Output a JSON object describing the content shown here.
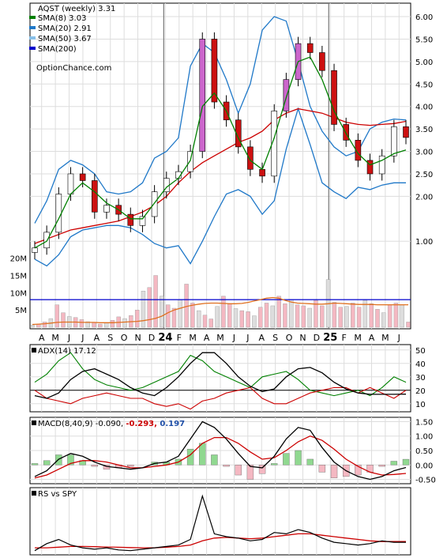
{
  "chart_data": [
    {
      "type": "line",
      "panel": "price",
      "title": "AQST (weekly) 3.31",
      "watermark": "OptionChance.com",
      "legend": [
        {
          "label": "SMA(8) 3.03",
          "color": "#008000"
        },
        {
          "label": "SMA(20) 2.91",
          "color": "#1f78c8"
        },
        {
          "label": "SMA(50) 3.67",
          "color": "#87bfe8"
        },
        {
          "label": "SMA(200)",
          "color": "#0000cc"
        }
      ],
      "y_ticks": [
        "6.00",
        "5.50",
        "5.00",
        "4.50",
        "4.00",
        "3.50",
        "3.00",
        "2.50",
        "2.00",
        "1.00"
      ],
      "ylim": [
        0.3,
        6.3
      ],
      "x_labels": [
        "A",
        "M",
        "J",
        "J",
        "A",
        "S",
        "O",
        "N",
        "D",
        "24",
        "F",
        "M",
        "A",
        "M",
        "J",
        "J",
        "A",
        "S",
        "O",
        "N",
        "D",
        "25",
        "F",
        "M",
        "A",
        "M",
        "J"
      ],
      "close": [
        0.85,
        1.2,
        2.05,
        2.5,
        2.35,
        1.65,
        1.8,
        1.6,
        1.35,
        1.55,
        2.1,
        2.4,
        2.55,
        3.0,
        5.5,
        4.1,
        3.7,
        3.1,
        2.6,
        2.45,
        3.9,
        4.6,
        5.4,
        5.2,
        4.8,
        3.6,
        3.25,
        2.8,
        2.5,
        2.9,
        3.55,
        3.31
      ],
      "sma8": [
        0.85,
        1.0,
        1.5,
        2.05,
        2.3,
        2.1,
        1.85,
        1.7,
        1.5,
        1.5,
        1.85,
        2.2,
        2.4,
        2.8,
        4.0,
        4.3,
        3.9,
        3.3,
        2.8,
        2.6,
        3.3,
        4.2,
        5.0,
        5.1,
        4.6,
        3.9,
        3.4,
        2.95,
        2.7,
        2.8,
        2.95,
        3.03
      ],
      "upper_band": [
        1.4,
        1.9,
        2.6,
        2.8,
        2.7,
        2.5,
        2.1,
        2.05,
        2.1,
        2.3,
        2.85,
        3.0,
        3.3,
        4.9,
        5.4,
        5.2,
        4.6,
        3.85,
        4.5,
        5.7,
        6.0,
        5.9,
        5.0,
        4.0,
        3.45,
        3.1,
        2.9,
        3.0,
        3.5,
        3.65,
        3.72,
        3.7
      ],
      "lower_band": [
        0.6,
        0.45,
        0.7,
        1.1,
        1.25,
        1.3,
        1.35,
        1.35,
        1.3,
        1.15,
        0.95,
        0.85,
        0.9,
        0.5,
        1.0,
        1.55,
        2.05,
        2.15,
        2.0,
        1.6,
        1.9,
        3.05,
        3.95,
        3.15,
        2.3,
        2.1,
        1.95,
        2.2,
        2.15,
        2.25,
        2.3,
        2.3
      ],
      "sma50": [
        0.95,
        1.05,
        1.15,
        1.25,
        1.3,
        1.35,
        1.4,
        1.45,
        1.55,
        1.65,
        1.8,
        2.0,
        2.3,
        2.55,
        2.75,
        2.9,
        3.05,
        3.2,
        3.3,
        3.45,
        3.7,
        3.85,
        3.95,
        3.9,
        3.85,
        3.75,
        3.65,
        3.6,
        3.58,
        3.6,
        3.62,
        3.67
      ]
    },
    {
      "type": "bar",
      "panel": "volume",
      "y_ticks": [
        "20M",
        "15M",
        "10M",
        "5M"
      ],
      "ylim": [
        0,
        22
      ],
      "values": [
        0.6,
        0.9,
        1.5,
        2.5,
        6.5,
        4.2,
        3.1,
        2.8,
        2.2,
        1.6,
        1.3,
        0.9,
        1.2,
        2.0,
        3.0,
        2.5,
        3.4,
        5.0,
        10.5,
        11.5,
        15.0,
        9.0,
        6.5,
        5.5,
        8.0,
        12.5,
        7.0,
        4.8,
        3.5,
        2.4,
        6.0,
        9.0,
        6.8,
        5.4,
        4.8,
        4.5,
        3.3,
        5.8,
        7.0,
        6.2,
        9.0,
        6.8,
        8.0,
        6.5,
        6.2,
        5.5,
        7.8,
        6.2,
        13.8,
        7.2,
        5.8,
        6.0,
        7.0,
        5.8,
        7.8,
        6.8,
        5.2,
        4.2,
        6.5,
        7.0,
        6.5,
        1.5
      ],
      "avg_volume": [
        0.8,
        0.9,
        1.0,
        1.2,
        1.4,
        1.5,
        1.5,
        1.5,
        1.4,
        1.4,
        1.4,
        1.3,
        1.3,
        1.3,
        1.4,
        1.5,
        1.6,
        1.7,
        1.9,
        2.2,
        2.6,
        3.2,
        4.2,
        5.0,
        5.5,
        6.0,
        6.4,
        6.7,
        6.9,
        7.0,
        7.0,
        6.9,
        6.8,
        6.8,
        6.9,
        7.2,
        7.6,
        8.0,
        8.4,
        8.6,
        8.4,
        7.8,
        7.3,
        7.0,
        6.9,
        6.8,
        6.7,
        6.7,
        6.8,
        7.0,
        6.9,
        6.8,
        6.7,
        6.6,
        6.6,
        6.6,
        6.5,
        6.5,
        6.5,
        6.5,
        6.5,
        6.5
      ],
      "reference_level": 8
    },
    {
      "type": "line",
      "panel": "adx",
      "title": "ADX(14) 17.12",
      "y_ticks": [
        "50",
        "40",
        "30",
        "20",
        "10"
      ],
      "ylim": [
        4,
        54
      ],
      "adx": [
        16,
        14,
        18,
        28,
        34,
        36,
        32,
        28,
        22,
        18,
        16,
        22,
        30,
        40,
        48,
        48,
        40,
        30,
        23,
        19,
        21,
        30,
        36,
        37,
        33,
        26,
        21,
        18,
        17,
        17,
        17,
        17.12
      ],
      "plus_di": [
        26,
        32,
        42,
        48,
        36,
        28,
        24,
        22,
        20,
        22,
        26,
        30,
        34,
        46,
        42,
        34,
        30,
        26,
        22,
        30,
        32,
        34,
        28,
        20,
        18,
        16,
        18,
        20,
        16,
        22,
        30,
        26
      ],
      "minus_di": [
        20,
        14,
        12,
        10,
        14,
        16,
        18,
        16,
        14,
        14,
        10,
        8,
        10,
        6,
        12,
        14,
        18,
        20,
        22,
        14,
        10,
        10,
        14,
        18,
        20,
        22,
        22,
        18,
        22,
        18,
        14,
        20
      ]
    },
    {
      "type": "line",
      "panel": "macd",
      "title": "MACD(8,40,9)",
      "title_value": "-0.090,",
      "signal_value": "-0.293,",
      "histogram_value": "0.197",
      "y_ticks": [
        "1.50",
        "1.00",
        "0.50",
        "0.00",
        "-0.50"
      ],
      "ylim": [
        -0.65,
        1.65
      ],
      "macd": [
        -0.4,
        -0.2,
        0.2,
        0.4,
        0.3,
        0.1,
        -0.05,
        -0.1,
        -0.15,
        -0.1,
        0.05,
        0.1,
        0.3,
        0.9,
        1.5,
        1.3,
        0.9,
        0.4,
        -0.05,
        -0.1,
        0.3,
        0.9,
        1.3,
        1.2,
        0.6,
        0.1,
        -0.2,
        -0.4,
        -0.5,
        -0.4,
        -0.2,
        -0.09
      ],
      "signal": [
        -0.45,
        -0.35,
        -0.15,
        0.05,
        0.15,
        0.15,
        0.1,
        0.0,
        -0.1,
        -0.1,
        -0.05,
        0.0,
        0.1,
        0.35,
        0.75,
        0.95,
        0.95,
        0.75,
        0.45,
        0.2,
        0.25,
        0.5,
        0.8,
        1.0,
        0.85,
        0.55,
        0.2,
        -0.05,
        -0.25,
        -0.35,
        -0.33,
        -0.293
      ],
      "histogram": [
        0.05,
        0.15,
        0.35,
        0.35,
        0.15,
        -0.05,
        -0.15,
        -0.1,
        -0.05,
        0.0,
        0.1,
        0.1,
        0.2,
        0.55,
        0.75,
        0.35,
        -0.05,
        -0.35,
        -0.5,
        -0.3,
        0.05,
        0.4,
        0.5,
        0.2,
        -0.25,
        -0.45,
        -0.4,
        -0.35,
        -0.25,
        -0.05,
        0.13,
        0.197
      ]
    },
    {
      "type": "line",
      "panel": "rs",
      "title": "RS vs SPY",
      "rs": [
        0.1,
        0.6,
        0.9,
        0.5,
        0.3,
        0.2,
        0.3,
        0.15,
        0.1,
        0.2,
        0.3,
        0.4,
        0.5,
        0.9,
        4.0,
        1.3,
        1.1,
        1.0,
        0.8,
        0.9,
        1.4,
        1.3,
        1.6,
        1.4,
        1.0,
        0.7,
        0.6,
        0.5,
        0.6,
        0.8,
        0.7,
        0.7
      ],
      "rs_avg": [
        0.3,
        0.3,
        0.35,
        0.4,
        0.4,
        0.38,
        0.36,
        0.34,
        0.32,
        0.3,
        0.3,
        0.35,
        0.4,
        0.5,
        0.8,
        1.0,
        1.05,
        1.0,
        0.95,
        1.0,
        1.1,
        1.2,
        1.3,
        1.3,
        1.2,
        1.1,
        1.0,
        0.9,
        0.8,
        0.75,
        0.75,
        0.75
      ],
      "ylim": [
        -0.2,
        4.6
      ]
    }
  ]
}
